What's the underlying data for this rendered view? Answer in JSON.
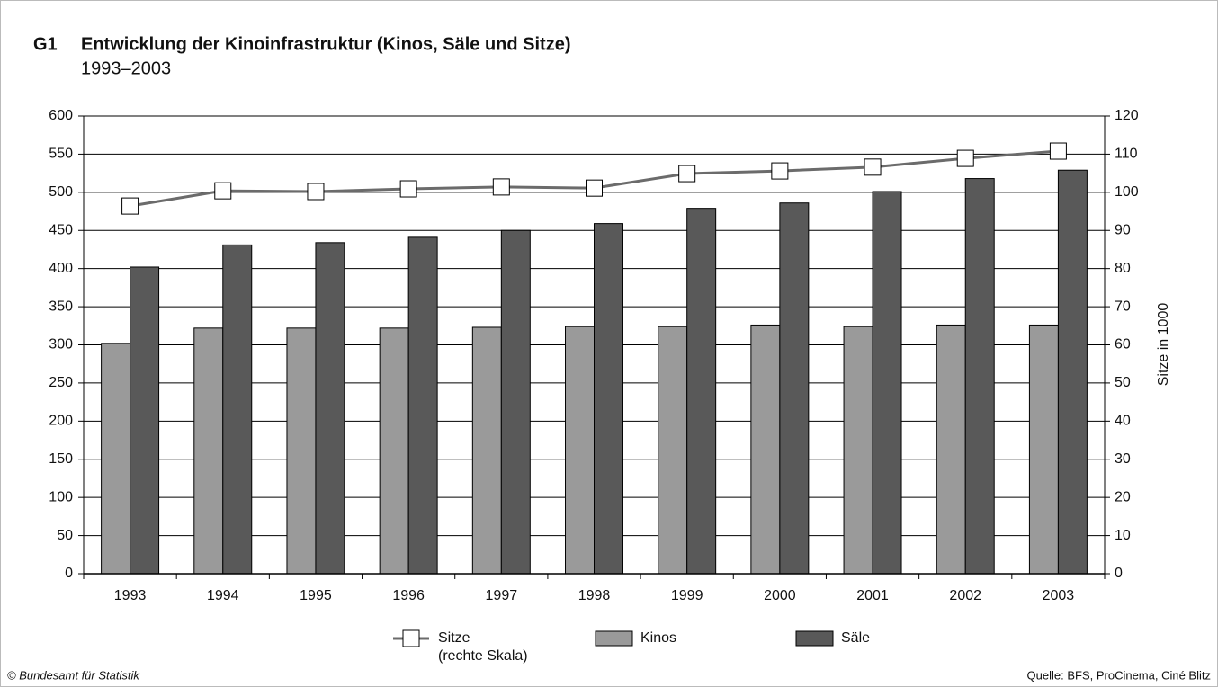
{
  "chart_data": {
    "type": "bar",
    "number": "G1",
    "title": "Entwicklung der Kinoinfrastruktur (Kinos, Säle und Sitze)",
    "subtitle": "1993–2003",
    "y2label": "Sitze in 1000",
    "categories": [
      "1993",
      "1994",
      "1995",
      "1996",
      "1997",
      "1998",
      "1999",
      "2000",
      "2001",
      "2002",
      "2003"
    ],
    "series": [
      {
        "name": "Sitze",
        "note": "(rechte Skala)",
        "type": "line",
        "axis": "y2",
        "color": "#6b6b6b",
        "marker_color": "#ffffff",
        "values": [
          96.4,
          100.4,
          100.2,
          100.9,
          101.4,
          101.1,
          104.9,
          105.6,
          106.6,
          108.9,
          110.8
        ]
      },
      {
        "name": "Kinos",
        "type": "bar",
        "color": "#9a9a9a",
        "values": [
          302,
          322,
          322,
          322,
          323,
          324,
          324,
          326,
          324,
          326,
          326
        ]
      },
      {
        "name": "Säle",
        "type": "bar",
        "color": "#595959",
        "values": [
          402,
          431,
          434,
          441,
          450,
          459,
          479,
          486,
          501,
          518,
          529
        ]
      }
    ],
    "ylim": [
      0,
      600
    ],
    "yticks": [
      0,
      50,
      100,
      150,
      200,
      250,
      300,
      350,
      400,
      450,
      500,
      550,
      600
    ],
    "y2lim": [
      0,
      120
    ],
    "y2ticks": [
      0,
      10,
      20,
      30,
      40,
      50,
      60,
      70,
      80,
      90,
      100,
      110,
      120
    ],
    "grid": true,
    "legend": "bottom",
    "copyright": "© Bundesamt für Statistik",
    "source": "Quelle: BFS, ProCinema, Ciné Blitz"
  }
}
